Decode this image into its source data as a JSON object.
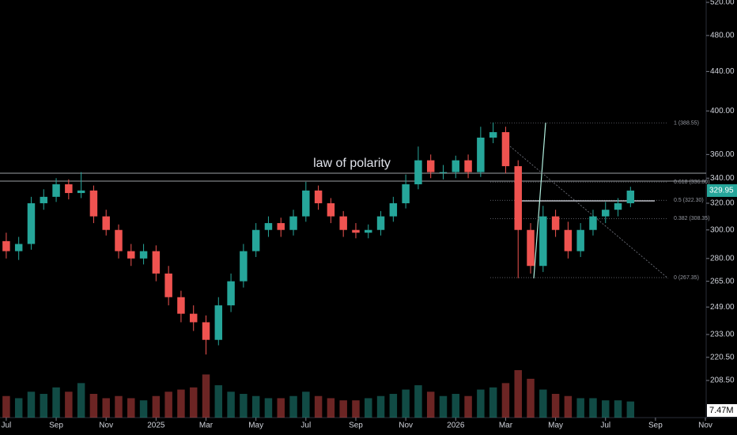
{
  "chart_data": {
    "type": "candlestick",
    "annotation": "law of polarity",
    "log_scale": true,
    "up_color": "#26a69a",
    "down_color": "#ef5350",
    "xlim": [
      -0.25,
      28.03
    ],
    "xticks": [
      {
        "value": 0,
        "label": "Jul"
      },
      {
        "value": 2,
        "label": "Sep"
      },
      {
        "value": 4,
        "label": "Nov"
      },
      {
        "value": 6,
        "label": "2025"
      },
      {
        "value": 8,
        "label": "Mar"
      },
      {
        "value": 10,
        "label": "May"
      },
      {
        "value": 12,
        "label": "Jul"
      },
      {
        "value": 14,
        "label": "Sep"
      },
      {
        "value": 16,
        "label": "Nov"
      },
      {
        "value": 18,
        "label": "2026"
      },
      {
        "value": 20,
        "label": "Mar"
      },
      {
        "value": 22,
        "label": "May"
      },
      {
        "value": 24,
        "label": "Jul"
      },
      {
        "value": 26,
        "label": "Sep"
      },
      {
        "value": 28,
        "label": "Nov"
      }
    ],
    "ylim": [
      190.6,
      523
    ],
    "yticks": [
      {
        "value": 520,
        "label": "520.00"
      },
      {
        "value": 480,
        "label": "480.00"
      },
      {
        "value": 440,
        "label": "440.00"
      },
      {
        "value": 400,
        "label": "400.00"
      },
      {
        "value": 360,
        "label": "360.00"
      },
      {
        "value": 340,
        "label": "340.00"
      },
      {
        "value": 320,
        "label": "320.00"
      },
      {
        "value": 300,
        "label": "300.00"
      },
      {
        "value": 280,
        "label": "280.00"
      },
      {
        "value": 265,
        "label": "265.00"
      },
      {
        "value": 249,
        "label": "249.00"
      },
      {
        "value": 233,
        "label": "233.00"
      },
      {
        "value": 220.5,
        "label": "220.50"
      },
      {
        "value": 208.5,
        "label": "208.50"
      }
    ],
    "last_price": {
      "value": 329.95,
      "label": "329.95"
    },
    "volume_label": "7.47M",
    "fib_levels": [
      {
        "price": 388.55,
        "label": "1 (388.55)"
      },
      {
        "price": 336.8,
        "label": "0.618 (336.80)"
      },
      {
        "price": 322.3,
        "label": "0.5 (322.30)"
      },
      {
        "price": 308.35,
        "label": "0.382 (308.35)"
      },
      {
        "price": 267.35,
        "label": "0 (267.35)"
      }
    ],
    "x": [
      0,
      0.5,
      1,
      1.5,
      2,
      2.5,
      3,
      3.5,
      4,
      4.5,
      5,
      5.5,
      6,
      6.5,
      7,
      7.5,
      8,
      8.5,
      9,
      9.5,
      10,
      10.5,
      11,
      11.5,
      12,
      12.5,
      13,
      13.5,
      14,
      14.5,
      15,
      15.5,
      16,
      16.5,
      17,
      17.5,
      18,
      18.5,
      19,
      19.5,
      20,
      20.5,
      21,
      21.5,
      22,
      22.5,
      23,
      23.5,
      24,
      24.5,
      25
    ],
    "open": [
      292,
      285,
      290,
      320,
      325,
      335,
      328,
      330,
      310,
      300,
      285,
      280,
      285,
      270,
      255,
      245,
      240,
      230,
      250,
      265,
      285,
      300,
      305,
      300,
      310,
      330,
      320,
      310,
      300,
      298,
      300,
      310,
      320,
      335,
      355,
      345,
      345,
      355,
      345,
      375,
      380,
      350,
      300,
      275,
      310,
      300,
      285,
      300,
      310,
      315,
      320
    ],
    "high": [
      298,
      295,
      325,
      331,
      340,
      339,
      345,
      334,
      315,
      304,
      290,
      290,
      289,
      275,
      259,
      250,
      244,
      255,
      270,
      290,
      305,
      310,
      309,
      315,
      337,
      334,
      324,
      314,
      305,
      304,
      314,
      325,
      343,
      367,
      360,
      351,
      359,
      360,
      385,
      389,
      385,
      355,
      305,
      318,
      315,
      306,
      305,
      315,
      321,
      324,
      333
    ],
    "low": [
      280,
      279,
      286,
      315,
      321,
      323,
      324,
      305,
      296,
      280,
      275,
      276,
      265,
      250,
      240,
      235,
      222,
      227,
      246,
      261,
      281,
      295,
      295,
      296,
      306,
      315,
      305,
      295,
      294,
      294,
      296,
      306,
      316,
      331,
      340,
      339,
      340,
      340,
      341,
      370,
      344,
      267,
      270,
      271,
      295,
      280,
      281,
      296,
      305,
      310,
      317
    ],
    "close": [
      285,
      290,
      320,
      325,
      335,
      328,
      330,
      310,
      300,
      285,
      280,
      285,
      270,
      255,
      245,
      240,
      230,
      250,
      265,
      285,
      300,
      305,
      300,
      310,
      330,
      320,
      310,
      300,
      298,
      300,
      310,
      320,
      335,
      355,
      345,
      345,
      355,
      345,
      375,
      380,
      350,
      300,
      275,
      310,
      300,
      285,
      300,
      310,
      315,
      320,
      329.95
    ],
    "volume": [
      10,
      9,
      12,
      11,
      14,
      12,
      16,
      11,
      9,
      10,
      9,
      8,
      10,
      12,
      13,
      14,
      20,
      15,
      12,
      11,
      10,
      9,
      9,
      10,
      12,
      10,
      9,
      8,
      8,
      9,
      10,
      11,
      13,
      15,
      12,
      10,
      11,
      10,
      13,
      14,
      16,
      22,
      18,
      13,
      11,
      10,
      9,
      9,
      8,
      8,
      7.47
    ]
  }
}
